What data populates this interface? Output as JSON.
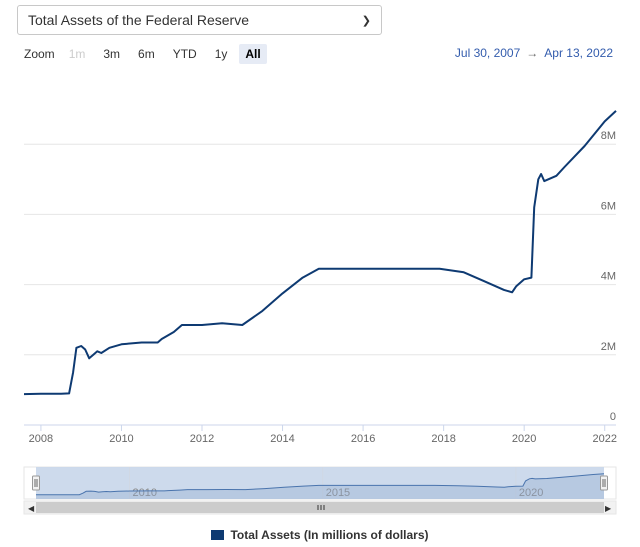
{
  "selector": {
    "value": "Total Assets of the Federal Reserve",
    "arrow_icon": "chevron-down-icon"
  },
  "zoom": {
    "label": "Zoom",
    "buttons": [
      {
        "label": "1m",
        "state": "disabled"
      },
      {
        "label": "3m",
        "state": "normal"
      },
      {
        "label": "6m",
        "state": "normal"
      },
      {
        "label": "YTD",
        "state": "normal"
      },
      {
        "label": "1y",
        "state": "normal"
      },
      {
        "label": "All",
        "state": "active"
      }
    ]
  },
  "range": {
    "from": "Jul 30, 2007",
    "to": "Apr 13, 2022",
    "separator": "→"
  },
  "colors": {
    "series": "#0e3a72",
    "navigator_fill": "#c8d6ea",
    "grid": "#e6e6e6"
  },
  "chart_data": {
    "type": "line",
    "title": "",
    "xlabel": "",
    "ylabel": "",
    "xlim": [
      2007.58,
      2022.28
    ],
    "ylim": [
      0,
      10000000
    ],
    "x_ticks": [
      "2008",
      "2010",
      "2012",
      "2014",
      "2016",
      "2018",
      "2020",
      "2022"
    ],
    "y_ticks": [
      "0",
      "2M",
      "4M",
      "6M",
      "8M"
    ],
    "grid": true,
    "legend_position": "bottom-center",
    "series": [
      {
        "name": "Total Assets (In millions of dollars)",
        "x": [
          2007.58,
          2008.0,
          2008.5,
          2008.7,
          2008.8,
          2008.88,
          2009.0,
          2009.1,
          2009.2,
          2009.3,
          2009.4,
          2009.5,
          2009.7,
          2010.0,
          2010.5,
          2010.9,
          2011.0,
          2011.3,
          2011.5,
          2012.0,
          2012.5,
          2013.0,
          2013.5,
          2014.0,
          2014.5,
          2014.9,
          2015.5,
          2016.0,
          2017.0,
          2017.9,
          2018.5,
          2019.0,
          2019.5,
          2019.7,
          2019.8,
          2020.0,
          2020.18,
          2020.25,
          2020.35,
          2020.42,
          2020.5,
          2020.8,
          2021.0,
          2021.5,
          2022.0,
          2022.28
        ],
        "y": [
          880000,
          890000,
          890000,
          900000,
          1500000,
          2200000,
          2250000,
          2150000,
          1900000,
          2000000,
          2100000,
          2050000,
          2200000,
          2300000,
          2350000,
          2350000,
          2450000,
          2650000,
          2850000,
          2850000,
          2900000,
          2850000,
          3250000,
          3750000,
          4200000,
          4450000,
          4450000,
          4450000,
          4450000,
          4450000,
          4350000,
          4100000,
          3850000,
          3780000,
          3950000,
          4150000,
          4200000,
          6200000,
          7000000,
          7150000,
          6950000,
          7100000,
          7350000,
          7950000,
          8650000,
          8950000
        ]
      }
    ],
    "navigator": {
      "x_ticks": [
        "2010",
        "2015",
        "2020"
      ]
    }
  },
  "legend": {
    "label": "Total Assets (In millions of dollars)"
  }
}
